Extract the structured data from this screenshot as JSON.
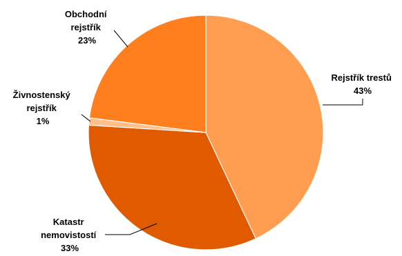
{
  "chart_data": {
    "type": "pie",
    "title": "",
    "legend": "none",
    "slices": [
      {
        "name_lines": [
          "Rejstřík trestů"
        ],
        "value": 43,
        "value_label": "43%",
        "color": "#FF9E50"
      },
      {
        "name_lines": [
          "Katastr",
          "nemovistostí"
        ],
        "value": 33,
        "value_label": "33%",
        "color": "#E05A00"
      },
      {
        "name_lines": [
          "Živnostenský",
          "rejstřík"
        ],
        "value": 1,
        "value_label": "1%",
        "color": "#FFC08A"
      },
      {
        "name_lines": [
          "Obchodní",
          "rejstřík"
        ],
        "value": 23,
        "value_label": "23%",
        "color": "#FF7F1E"
      }
    ]
  }
}
